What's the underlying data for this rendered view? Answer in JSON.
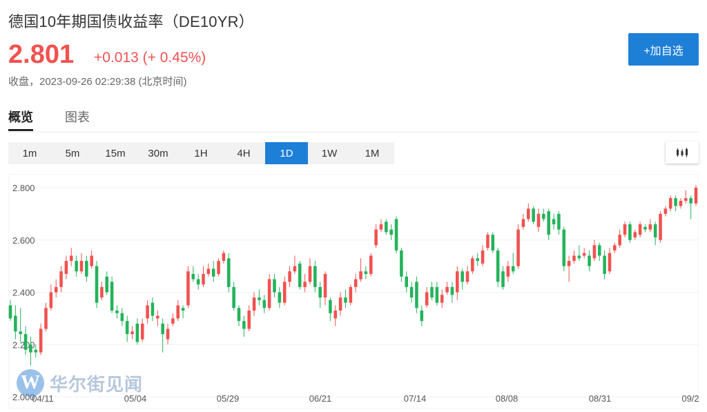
{
  "header": {
    "title": "德国10年期国债收益率（DE10YR）",
    "price": "2.801",
    "change": "+0.013",
    "change_pct": "(+ 0.45%)",
    "status": "收盘，2023-09-26 02:29:38 (北京时间)",
    "add_button": "+加自选"
  },
  "tabs": [
    {
      "label": "概览",
      "active": true
    },
    {
      "label": "图表",
      "active": false
    }
  ],
  "periods": [
    {
      "label": "1m",
      "active": false
    },
    {
      "label": "5m",
      "active": false
    },
    {
      "label": "15m",
      "active": false
    },
    {
      "label": "30m",
      "active": false
    },
    {
      "label": "1H",
      "active": false
    },
    {
      "label": "4H",
      "active": false
    },
    {
      "label": "1D",
      "active": true
    },
    {
      "label": "1W",
      "active": false
    },
    {
      "label": "1M",
      "active": false
    }
  ],
  "chart_type_icon": "candlestick-icon",
  "watermark": {
    "logo": "W",
    "text": "华尔街见闻"
  },
  "colors": {
    "up": "#f0524f",
    "down": "#24b35b",
    "accent": "#1e7fd7"
  },
  "chart_data": {
    "type": "candlestick",
    "y_ticks": [
      "2.800",
      "2.600",
      "2.400",
      "2.200",
      "2.000"
    ],
    "ylim": [
      2.0,
      2.8
    ],
    "x_labels": [
      "04/11",
      "05/04",
      "05/29",
      "06/21",
      "07/14",
      "08/08",
      "08/31",
      "09/2"
    ],
    "series": [
      [
        2.35,
        2.3,
        2.37,
        2.29
      ],
      [
        2.31,
        2.25,
        2.35,
        2.22
      ],
      [
        2.25,
        2.24,
        2.34,
        2.21
      ],
      [
        2.24,
        2.18,
        2.27,
        2.16
      ],
      [
        2.2,
        2.17,
        2.23,
        2.12
      ],
      [
        2.18,
        2.17,
        2.2,
        2.15
      ],
      [
        2.17,
        2.26,
        2.28,
        2.16
      ],
      [
        2.26,
        2.34,
        2.36,
        2.25
      ],
      [
        2.34,
        2.4,
        2.43,
        2.33
      ],
      [
        2.4,
        2.42,
        2.45,
        2.38
      ],
      [
        2.42,
        2.48,
        2.5,
        2.4
      ],
      [
        2.47,
        2.52,
        2.54,
        2.45
      ],
      [
        2.52,
        2.54,
        2.57,
        2.5
      ],
      [
        2.52,
        2.48,
        2.54,
        2.46
      ],
      [
        2.48,
        2.52,
        2.55,
        2.47
      ],
      [
        2.52,
        2.46,
        2.54,
        2.44
      ],
      [
        2.5,
        2.54,
        2.56,
        2.49
      ],
      [
        2.5,
        2.36,
        2.52,
        2.34
      ],
      [
        2.38,
        2.42,
        2.44,
        2.37
      ],
      [
        2.46,
        2.4,
        2.48,
        2.39
      ],
      [
        2.44,
        2.33,
        2.46,
        2.32
      ],
      [
        2.33,
        2.32,
        2.35,
        2.3
      ],
      [
        2.32,
        2.29,
        2.34,
        2.27
      ],
      [
        2.29,
        2.24,
        2.31,
        2.21
      ],
      [
        2.24,
        2.25,
        2.27,
        2.22
      ],
      [
        2.28,
        2.21,
        2.3,
        2.2
      ],
      [
        2.22,
        2.28,
        2.3,
        2.21
      ],
      [
        2.3,
        2.35,
        2.37,
        2.28
      ],
      [
        2.36,
        2.31,
        2.38,
        2.29
      ],
      [
        2.3,
        2.31,
        2.33,
        2.27
      ],
      [
        2.28,
        2.24,
        2.3,
        2.17
      ],
      [
        2.22,
        2.26,
        2.28,
        2.2
      ],
      [
        2.28,
        2.3,
        2.32,
        2.27
      ],
      [
        2.3,
        2.35,
        2.37,
        2.29
      ],
      [
        2.34,
        2.33,
        2.35,
        2.3
      ],
      [
        2.35,
        2.48,
        2.5,
        2.34
      ],
      [
        2.47,
        2.45,
        2.5,
        2.44
      ],
      [
        2.45,
        2.43,
        2.47,
        2.41
      ],
      [
        2.43,
        2.47,
        2.5,
        2.42
      ],
      [
        2.47,
        2.49,
        2.51,
        2.46
      ],
      [
        2.49,
        2.46,
        2.52,
        2.44
      ],
      [
        2.47,
        2.52,
        2.53,
        2.46
      ],
      [
        2.52,
        2.55,
        2.56,
        2.51
      ],
      [
        2.53,
        2.42,
        2.55,
        2.4
      ],
      [
        2.42,
        2.34,
        2.44,
        2.33
      ],
      [
        2.34,
        2.29,
        2.35,
        2.27
      ],
      [
        2.29,
        2.26,
        2.31,
        2.23
      ],
      [
        2.26,
        2.33,
        2.35,
        2.25
      ],
      [
        2.33,
        2.38,
        2.4,
        2.31
      ],
      [
        2.38,
        2.37,
        2.41,
        2.35
      ],
      [
        2.37,
        2.34,
        2.39,
        2.32
      ],
      [
        2.34,
        2.45,
        2.47,
        2.33
      ],
      [
        2.45,
        2.4,
        2.47,
        2.38
      ],
      [
        2.4,
        2.36,
        2.42,
        2.34
      ],
      [
        2.36,
        2.44,
        2.46,
        2.35
      ],
      [
        2.44,
        2.48,
        2.5,
        2.42
      ],
      [
        2.48,
        2.5,
        2.54,
        2.47
      ],
      [
        2.51,
        2.42,
        2.52,
        2.41
      ],
      [
        2.42,
        2.44,
        2.47,
        2.4
      ],
      [
        2.44,
        2.5,
        2.53,
        2.43
      ],
      [
        2.5,
        2.42,
        2.52,
        2.4
      ],
      [
        2.42,
        2.38,
        2.44,
        2.34
      ],
      [
        2.38,
        2.47,
        2.48,
        2.35
      ],
      [
        2.37,
        2.32,
        2.38,
        2.29
      ],
      [
        2.3,
        2.33,
        2.35,
        2.27
      ],
      [
        2.33,
        2.38,
        2.4,
        2.31
      ],
      [
        2.38,
        2.36,
        2.41,
        2.34
      ],
      [
        2.36,
        2.42,
        2.43,
        2.35
      ],
      [
        2.42,
        2.45,
        2.47,
        2.4
      ],
      [
        2.45,
        2.48,
        2.53,
        2.44
      ],
      [
        2.48,
        2.47,
        2.5,
        2.45
      ],
      [
        2.47,
        2.54,
        2.55,
        2.46
      ],
      [
        2.58,
        2.64,
        2.66,
        2.57
      ],
      [
        2.64,
        2.66,
        2.68,
        2.63
      ],
      [
        2.67,
        2.63,
        2.68,
        2.62
      ],
      [
        2.64,
        2.62,
        2.66,
        2.6
      ],
      [
        2.68,
        2.56,
        2.69,
        2.55
      ],
      [
        2.56,
        2.46,
        2.57,
        2.44
      ],
      [
        2.46,
        2.42,
        2.48,
        2.4
      ],
      [
        2.42,
        2.38,
        2.44,
        2.36
      ],
      [
        2.44,
        2.34,
        2.46,
        2.32
      ],
      [
        2.33,
        2.29,
        2.35,
        2.27
      ],
      [
        2.35,
        2.4,
        2.42,
        2.34
      ],
      [
        2.42,
        2.38,
        2.44,
        2.37
      ],
      [
        2.42,
        2.36,
        2.44,
        2.35
      ],
      [
        2.36,
        2.39,
        2.41,
        2.34
      ],
      [
        2.4,
        2.42,
        2.44,
        2.39
      ],
      [
        2.42,
        2.39,
        2.44,
        2.36
      ],
      [
        2.4,
        2.48,
        2.5,
        2.37
      ],
      [
        2.48,
        2.44,
        2.49,
        2.41
      ],
      [
        2.44,
        2.48,
        2.5,
        2.43
      ],
      [
        2.48,
        2.53,
        2.54,
        2.47
      ],
      [
        2.53,
        2.52,
        2.55,
        2.5
      ],
      [
        2.51,
        2.56,
        2.58,
        2.5
      ],
      [
        2.57,
        2.62,
        2.63,
        2.56
      ],
      [
        2.62,
        2.56,
        2.63,
        2.55
      ],
      [
        2.56,
        2.44,
        2.57,
        2.42
      ],
      [
        2.48,
        2.42,
        2.5,
        2.41
      ],
      [
        2.46,
        2.5,
        2.52,
        2.44
      ],
      [
        2.5,
        2.48,
        2.55,
        2.47
      ],
      [
        2.5,
        2.64,
        2.66,
        2.49
      ],
      [
        2.65,
        2.68,
        2.7,
        2.64
      ],
      [
        2.68,
        2.72,
        2.74,
        2.67
      ],
      [
        2.72,
        2.67,
        2.73,
        2.66
      ],
      [
        2.65,
        2.7,
        2.72,
        2.63
      ],
      [
        2.7,
        2.68,
        2.72,
        2.67
      ],
      [
        2.71,
        2.62,
        2.72,
        2.6
      ],
      [
        2.68,
        2.66,
        2.7,
        2.64
      ],
      [
        2.7,
        2.64,
        2.71,
        2.62
      ],
      [
        2.64,
        2.5,
        2.65,
        2.48
      ],
      [
        2.5,
        2.52,
        2.54,
        2.44
      ],
      [
        2.52,
        2.54,
        2.56,
        2.51
      ],
      [
        2.54,
        2.53,
        2.58,
        2.52
      ],
      [
        2.54,
        2.55,
        2.57,
        2.53
      ],
      [
        2.54,
        2.5,
        2.56,
        2.48
      ],
      [
        2.53,
        2.58,
        2.6,
        2.52
      ],
      [
        2.58,
        2.54,
        2.59,
        2.52
      ],
      [
        2.54,
        2.47,
        2.56,
        2.45
      ],
      [
        2.48,
        2.55,
        2.57,
        2.47
      ],
      [
        2.56,
        2.58,
        2.59,
        2.55
      ],
      [
        2.58,
        2.62,
        2.64,
        2.57
      ],
      [
        2.62,
        2.66,
        2.67,
        2.61
      ],
      [
        2.66,
        2.6,
        2.67,
        2.59
      ],
      [
        2.61,
        2.63,
        2.64,
        2.6
      ],
      [
        2.62,
        2.66,
        2.67,
        2.61
      ],
      [
        2.65,
        2.64,
        2.66,
        2.63
      ],
      [
        2.64,
        2.66,
        2.68,
        2.63
      ],
      [
        2.66,
        2.61,
        2.67,
        2.58
      ],
      [
        2.6,
        2.7,
        2.71,
        2.59
      ],
      [
        2.7,
        2.72,
        2.73,
        2.69
      ],
      [
        2.72,
        2.76,
        2.77,
        2.71
      ],
      [
        2.76,
        2.73,
        2.77,
        2.71
      ],
      [
        2.73,
        2.75,
        2.76,
        2.72
      ],
      [
        2.75,
        2.76,
        2.79,
        2.74
      ],
      [
        2.76,
        2.74,
        2.77,
        2.68
      ],
      [
        2.74,
        2.8,
        2.81,
        2.73
      ]
    ]
  }
}
